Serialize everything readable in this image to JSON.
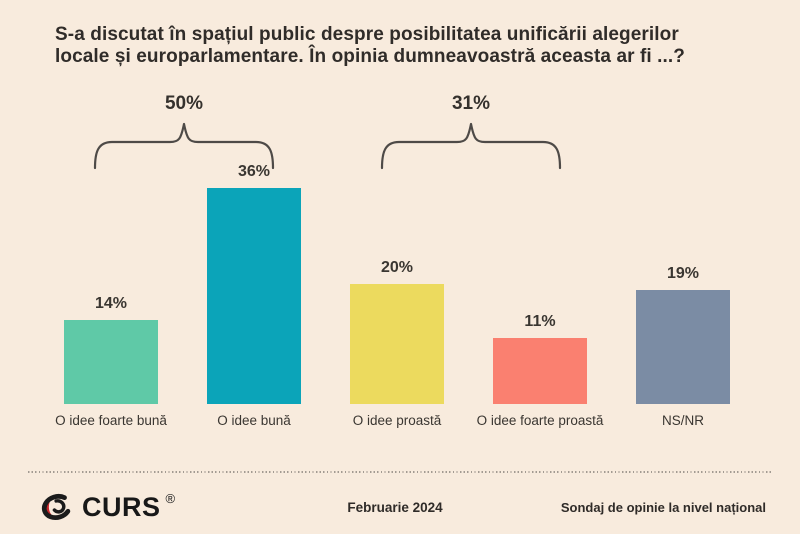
{
  "header": {
    "title": "S-a discutat în spațiul public despre posibilitatea unificării alegerilor\nlocale și europarlamentare. În opinia dumneavoastră aceasta ar fi ...?"
  },
  "chart_data": {
    "type": "bar",
    "title": "S-a discutat în spațiul public despre posibilitatea unificării alegerilor locale și europarlamentare. În opinia dumneavoastră aceasta ar fi ...?",
    "categories": [
      "O idee foarte bună",
      "O idee bună",
      "O idee proastă",
      "O idee foarte proastă",
      "NS/NR"
    ],
    "values": [
      14,
      36,
      20,
      11,
      19
    ],
    "value_labels": [
      "14%",
      "36%",
      "20%",
      "11%",
      "19%"
    ],
    "colors": [
      "#5fc9a7",
      "#0ba4b9",
      "#ecda5e",
      "#fa8070",
      "#7b8ca4"
    ],
    "ylim": [
      0,
      40
    ],
    "grid": false,
    "legend": "none",
    "group_annotations": [
      {
        "label": "50%",
        "covers": [
          "O idee foarte bună",
          "O idee bună"
        ],
        "sum_of": [
          14,
          36
        ]
      },
      {
        "label": "31%",
        "covers": [
          "O idee proastă",
          "O idee foarte proastă"
        ],
        "sum_of": [
          20,
          11
        ]
      }
    ]
  },
  "footer": {
    "logo_text": "CURS",
    "logo_registered": "®",
    "date": "Februarie 2024",
    "note": "Sondaj de opinie la nivel național"
  },
  "colors": {
    "background": "#f8ebdd",
    "text": "#33302c",
    "bracket": "#4e4a47",
    "logo_red": "#c8242b",
    "logo_black": "#1b1b1b"
  }
}
